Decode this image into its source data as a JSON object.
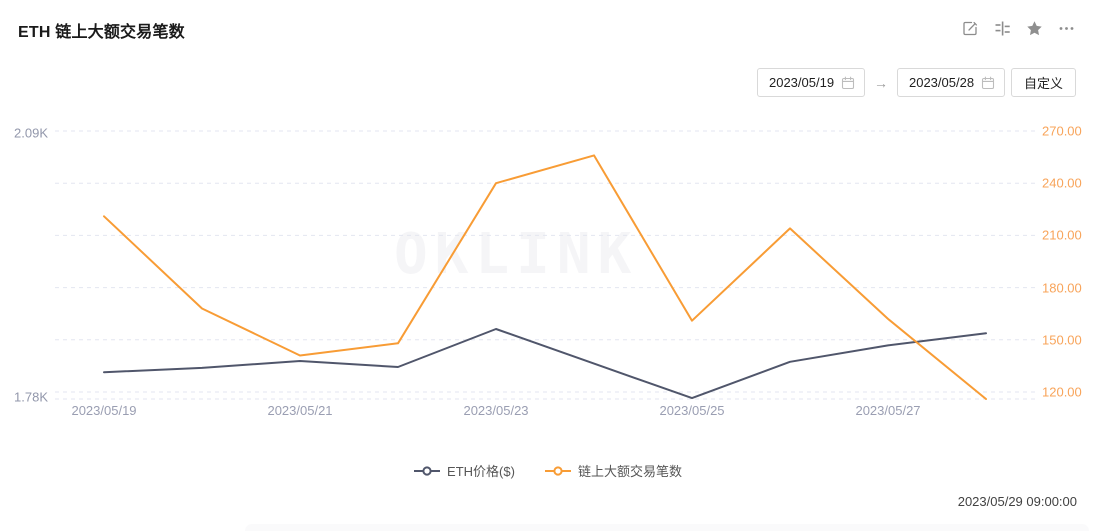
{
  "header": {
    "title": "ETH 链上大额交易笔数",
    "icons": [
      "edit-share-icon",
      "indicator-compare-icon",
      "favorite-star-icon",
      "more-icon"
    ]
  },
  "toolbar": {
    "start_date": "2023/05/19",
    "end_date": "2023/05/28",
    "arrow": "→",
    "custom_label": "自定义"
  },
  "watermark": "OKLINK",
  "chart_data": {
    "type": "line",
    "title": "ETH 链上大额交易笔数",
    "x": [
      "2023/05/19",
      "2023/05/20",
      "2023/05/21",
      "2023/05/22",
      "2023/05/23",
      "2023/05/24",
      "2023/05/25",
      "2023/05/26",
      "2023/05/27",
      "2023/05/28"
    ],
    "x_tick_labels": [
      "2023/05/19",
      "2023/05/21",
      "2023/05/23",
      "2023/05/25",
      "2023/05/27"
    ],
    "x_tick_indices": [
      0,
      2,
      4,
      6,
      8
    ],
    "series": [
      {
        "name": "ETH价格($)",
        "axis": "left",
        "color": "#50566b",
        "values": [
          1811,
          1816,
          1824,
          1817,
          1861,
          1821,
          1781,
          1823,
          1842,
          1856
        ]
      },
      {
        "name": "链上大额交易笔数",
        "axis": "right",
        "color": "#f89c35",
        "values": [
          221,
          168,
          141,
          148,
          240,
          256,
          161,
          214,
          162,
          116
        ]
      }
    ],
    "left_axis": {
      "tick_labels": [
        "2.09K",
        "1.78K"
      ],
      "min": 1780,
      "max": 2090
    },
    "right_axis": {
      "tick_labels": [
        "270.00",
        "240.00",
        "210.00",
        "180.00",
        "150.00",
        "120.00"
      ],
      "min": 120,
      "max": 270
    },
    "grid": true,
    "grid_color": "#e3e6f0",
    "legend_position": "bottom"
  },
  "footer": {
    "timestamp": "2023/05/29 09:00:00"
  }
}
